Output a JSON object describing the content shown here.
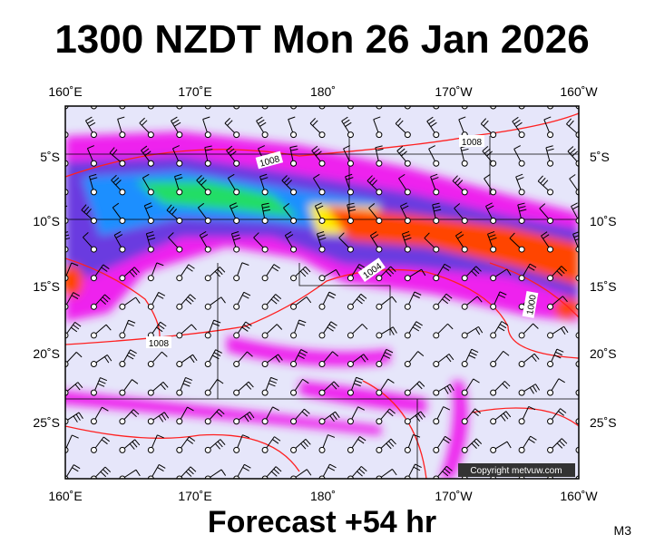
{
  "header": {
    "title": "1300 NZDT Mon 26 Jan 2026"
  },
  "map": {
    "longitude_labels": [
      "160˚E",
      "170˚E",
      "180˚",
      "170˚W",
      "160˚W"
    ],
    "latitude_labels": [
      "5˚S",
      "10˚S",
      "15˚S",
      "20˚S",
      "25˚S"
    ],
    "isobar_labels": [
      "1008",
      "1008",
      "1004",
      "1008",
      "1000"
    ],
    "copyright": "Copyright metvuw.com"
  },
  "footer": {
    "forecast": "Forecast +54 hr",
    "code": "M3"
  }
}
